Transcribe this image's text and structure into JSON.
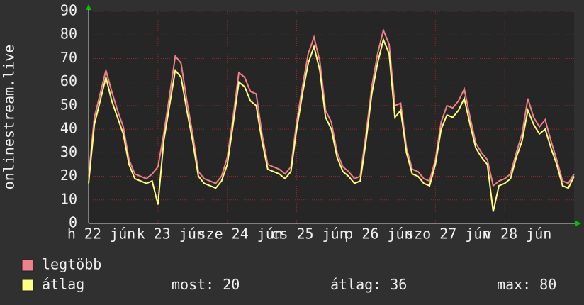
{
  "chart_data": {
    "type": "line",
    "y_label": "onlinestream.live",
    "ylim": [
      0,
      90
    ],
    "yticks": [
      0,
      10,
      20,
      30,
      40,
      50,
      60,
      70,
      80,
      90
    ],
    "grid": true,
    "xtick_labels": [
      "h 22 jún",
      "k 23 jún",
      "sze 24 jún",
      "cs 25 jún",
      "p 26 jún",
      "szo 27 jún",
      "v 28 jún"
    ],
    "series": [
      {
        "name": "legtöbb",
        "color": "#f0808a",
        "values": [
          20,
          45,
          55,
          65,
          56,
          48,
          41,
          27,
          21,
          20,
          19,
          21,
          24,
          38,
          54,
          71,
          68,
          52,
          38,
          22,
          19,
          18,
          17,
          20,
          28,
          45,
          64,
          62,
          56,
          55,
          38,
          25,
          24,
          23,
          21,
          24,
          43,
          58,
          72,
          79,
          69,
          48,
          43,
          30,
          24,
          22,
          19,
          20,
          38,
          58,
          72,
          82,
          76,
          50,
          51,
          32,
          23,
          22,
          19,
          18,
          27,
          43,
          50,
          49,
          52,
          57,
          45,
          34,
          30,
          27,
          16,
          18,
          19,
          21,
          30,
          38,
          53,
          45,
          41,
          44,
          35,
          27,
          18,
          17,
          21
        ]
      },
      {
        "name": "átlag",
        "color": "#ffff80",
        "values": [
          17,
          42,
          52,
          62,
          52,
          45,
          38,
          25,
          19,
          18,
          17,
          18,
          8,
          35,
          50,
          65,
          62,
          48,
          35,
          20,
          17,
          16,
          15,
          18,
          25,
          42,
          60,
          58,
          52,
          50,
          35,
          23,
          22,
          21,
          19,
          22,
          40,
          55,
          68,
          75,
          65,
          45,
          40,
          28,
          22,
          20,
          17,
          18,
          35,
          55,
          68,
          78,
          72,
          45,
          48,
          30,
          21,
          20,
          17,
          16,
          25,
          40,
          46,
          45,
          48,
          53,
          42,
          32,
          28,
          25,
          5,
          16,
          17,
          19,
          28,
          35,
          48,
          42,
          38,
          40,
          32,
          25,
          16,
          15,
          20
        ]
      }
    ],
    "stats": [
      {
        "label": "most:",
        "value": 20
      },
      {
        "label": "átlag:",
        "value": 36
      },
      {
        "label": "max:",
        "value": 80
      }
    ]
  }
}
